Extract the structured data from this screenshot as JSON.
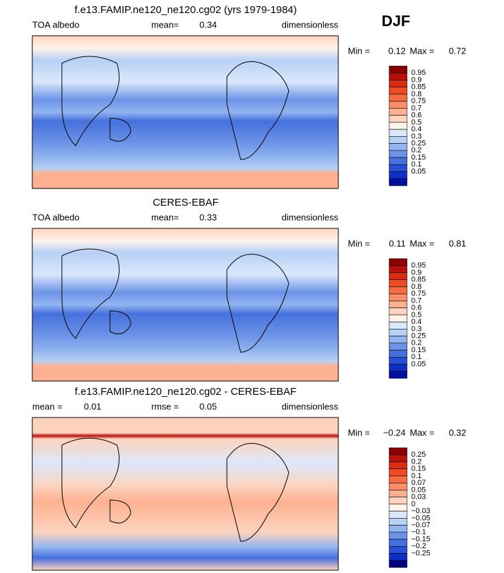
{
  "season": "DJF",
  "panels": [
    {
      "title": "f.e13.FAMIP.ne120_ne120.cg02 (yrs 1979-1984)",
      "left_label": "TOA albedo",
      "stat_label": "mean=",
      "stat_value": "0.34",
      "units": "dimensionless",
      "min_label": "Min =",
      "min_value": "0.12",
      "max_label": "Max =",
      "max_value": "0.72",
      "colorbar": {
        "labels": [
          "0.95",
          "0.9",
          "0.85",
          "0.8",
          "0.75",
          "0.7",
          "0.6",
          "0.5",
          "0.4",
          "0.3",
          "0.25",
          "0.2",
          "0.15",
          "0.1",
          "0.05"
        ],
        "colors": [
          "#8b0000",
          "#b8100c",
          "#d92c12",
          "#ef4b22",
          "#f76d42",
          "#fb8e68",
          "#fdb190",
          "#fdd3bd",
          "#fff3ea",
          "#dbe8fb",
          "#b7d0f6",
          "#92b4ef",
          "#6c93e7",
          "#4670dd",
          "#2750d6",
          "#0e2fc6",
          "#000f9e"
        ]
      }
    },
    {
      "title": "CERES-EBAF",
      "left_label": "TOA albedo",
      "stat_label": "mean=",
      "stat_value": "0.33",
      "units": "dimensionless",
      "min_label": "Min =",
      "min_value": "0.11",
      "max_label": "Max =",
      "max_value": "0.81",
      "colorbar": {
        "labels": [
          "0.95",
          "0.9",
          "0.85",
          "0.8",
          "0.75",
          "0.7",
          "0.6",
          "0.5",
          "0.4",
          "0.3",
          "0.25",
          "0.2",
          "0.15",
          "0.1",
          "0.05"
        ],
        "colors": [
          "#8b0000",
          "#b8100c",
          "#d92c12",
          "#ef4b22",
          "#f76d42",
          "#fb8e68",
          "#fdb190",
          "#fdd3bd",
          "#fff3ea",
          "#dbe8fb",
          "#b7d0f6",
          "#92b4ef",
          "#6c93e7",
          "#4670dd",
          "#2750d6",
          "#0e2fc6",
          "#000f9e"
        ]
      }
    },
    {
      "title": "f.e13.FAMIP.ne120_ne120.cg02 - CERES-EBAF",
      "left_label": "mean =",
      "left_value": "0.01",
      "stat_label": "rmse =",
      "stat_value": "0.05",
      "units": "dimensionless",
      "min_label": "Min =",
      "min_value": "−0.24",
      "max_label": "Max =",
      "max_value": "0.32",
      "colorbar": {
        "labels": [
          "0.25",
          "0.2",
          "0.15",
          "0.1",
          "0.07",
          "0.05",
          "0.03",
          "0",
          "−0.03",
          "−0.05",
          "−0.07",
          "−0.1",
          "−0.15",
          "−0.2",
          "−0.25"
        ],
        "colors": [
          "#8b0000",
          "#b8100c",
          "#d92c12",
          "#ef4b22",
          "#f76d42",
          "#fb8e68",
          "#fdb190",
          "#fdd3bd",
          "#fff3ea",
          "#dbe8fb",
          "#b7d0f6",
          "#92b4ef",
          "#6c93e7",
          "#4670dd",
          "#2750d6",
          "#0e2fc6",
          "#000080"
        ]
      }
    }
  ]
}
